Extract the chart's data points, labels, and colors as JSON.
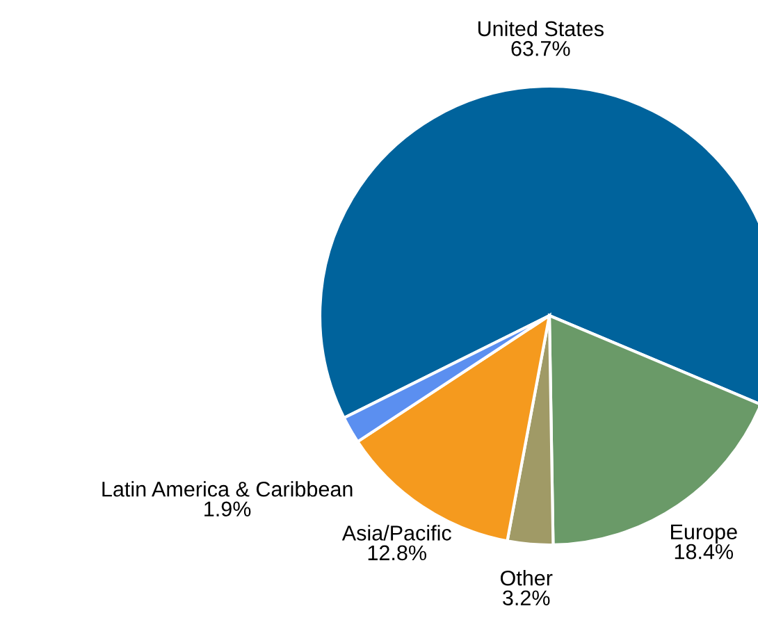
{
  "chart_data": {
    "type": "pie",
    "categories": [
      "United States",
      "Europe",
      "Other",
      "Asia/Pacific",
      "Latin America & Caribbean"
    ],
    "values": [
      63.7,
      18.4,
      3.2,
      12.8,
      1.9
    ],
    "colors": [
      "#00639c",
      "#6a9a68",
      "#a09a66",
      "#f59a1e",
      "#5b8ff0"
    ],
    "value_labels": [
      "63.7%",
      "18.4%",
      "3.2%",
      "12.8%",
      "1.9%"
    ]
  }
}
